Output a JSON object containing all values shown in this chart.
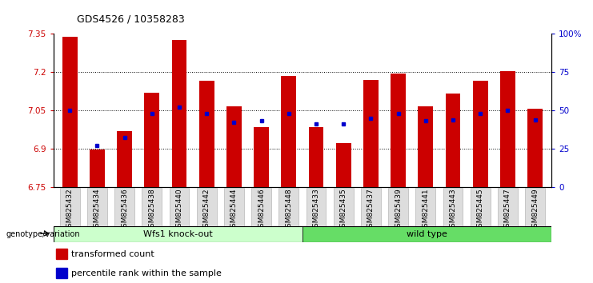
{
  "title": "GDS4526 / 10358283",
  "categories": [
    "GSM825432",
    "GSM825434",
    "GSM825436",
    "GSM825438",
    "GSM825440",
    "GSM825442",
    "GSM825444",
    "GSM825446",
    "GSM825448",
    "GSM825433",
    "GSM825435",
    "GSM825437",
    "GSM825439",
    "GSM825441",
    "GSM825443",
    "GSM825445",
    "GSM825447",
    "GSM825449"
  ],
  "bar_values": [
    7.34,
    6.895,
    6.97,
    7.12,
    7.325,
    7.165,
    7.065,
    6.985,
    7.185,
    6.985,
    6.92,
    7.17,
    7.195,
    7.065,
    7.115,
    7.165,
    7.205,
    7.055
  ],
  "dot_values": [
    50,
    27,
    32,
    48,
    52,
    48,
    42,
    43,
    48,
    41,
    41,
    45,
    48,
    43,
    44,
    48,
    50,
    44
  ],
  "bar_color": "#cc0000",
  "dot_color": "#0000cc",
  "ymin": 6.75,
  "ymax": 7.35,
  "y_ticks": [
    6.75,
    6.9,
    7.05,
    7.2,
    7.35
  ],
  "y2min": 0,
  "y2max": 100,
  "y2_ticks": [
    0,
    25,
    50,
    75,
    100
  ],
  "y2_tick_labels": [
    "0",
    "25",
    "50",
    "75",
    "100%"
  ],
  "group1_label": "Wfs1 knock-out",
  "group2_label": "wild type",
  "group1_count": 9,
  "group2_count": 9,
  "group1_color": "#ccffcc",
  "group2_color": "#66dd66",
  "genotype_label": "genotype/variation",
  "legend1": "transformed count",
  "legend2": "percentile rank within the sample",
  "bg_color": "#ffffff",
  "tick_label_color_left": "#cc0000",
  "tick_label_color_right": "#0000cc"
}
